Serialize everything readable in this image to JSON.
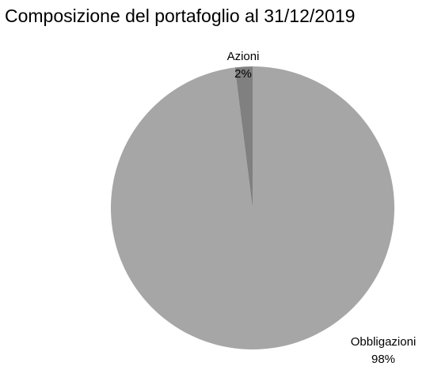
{
  "chart_data": {
    "type": "pie",
    "title": "Composizione del portafoglio al 31/12/2019",
    "categories": [
      "Obbligazioni",
      "Azioni"
    ],
    "values": [
      98,
      2
    ],
    "value_labels": [
      "98%",
      "2%"
    ],
    "colors": [
      "#a6a6a6",
      "#808080"
    ]
  }
}
